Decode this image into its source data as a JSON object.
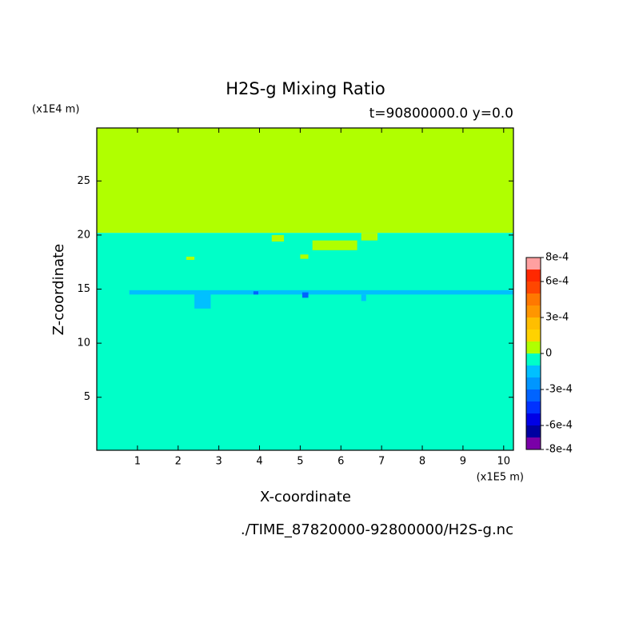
{
  "chart_data": {
    "type": "contour",
    "title": "H2S-g Mixing Ratio",
    "subtitle": "t=90800000.0 y=0.0",
    "x_label": "X-coordinate",
    "y_label": "Z-coordinate",
    "x_unit": "(x1E5 m)",
    "y_unit": "(x1E4 m)",
    "source": "./TIME_87820000-92800000/H2S-g.nc",
    "xlim": [
      0,
      10.24
    ],
    "ylim": [
      0.1,
      29.9
    ],
    "xticks": [
      1,
      2,
      3,
      4,
      5,
      6,
      7,
      8,
      9,
      10
    ],
    "yticks": [
      5,
      10,
      15,
      20,
      25
    ],
    "colorbar": {
      "levels": [
        -0.0008,
        -0.0007,
        -0.0006,
        -0.0005,
        -0.0004,
        -0.0003,
        -0.0002,
        -0.0001,
        0,
        0.0001,
        0.0002,
        0.0003,
        0.0004,
        0.0005,
        0.0006,
        0.0007,
        0.0008
      ],
      "colors": [
        "#7a00a8",
        "#0000a0",
        "#0000e6",
        "#0032ff",
        "#0064ff",
        "#0096ff",
        "#00c0ff",
        "#00ffc8",
        "#b0ff00",
        "#ffd200",
        "#ffbe00",
        "#ff9600",
        "#ff7800",
        "#ff4600",
        "#ff2800",
        "#ffa0a0"
      ],
      "ticks": [
        {
          "value": 0.0008,
          "label": "8e-4"
        },
        {
          "value": 0.0006,
          "label": "6e-4"
        },
        {
          "value": 0.0003,
          "label": "3e-4"
        },
        0,
        {
          "value": -0.0003,
          "label": "-3e-4"
        },
        {
          "value": -0.0006,
          "label": "-6e-4"
        },
        {
          "value": -0.0008,
          "label": "-8e-4"
        }
      ]
    },
    "patches": [
      {
        "x": [
          0,
          10.24
        ],
        "y": [
          20.2,
          29.9
        ],
        "value": 5e-05
      },
      {
        "x": [
          0,
          10.24
        ],
        "y": [
          0.1,
          20.2
        ],
        "value": -5e-05
      },
      {
        "x": [
          0.8,
          10.24
        ],
        "y": [
          14.5,
          14.9
        ],
        "value": -0.00015
      },
      {
        "x": [
          2.4,
          2.8
        ],
        "y": [
          13.2,
          14.8
        ],
        "value": -0.00015
      },
      {
        "x": [
          3.85,
          3.97
        ],
        "y": [
          14.5,
          14.8
        ],
        "value": -0.00035
      },
      {
        "x": [
          5.05,
          5.2
        ],
        "y": [
          14.2,
          14.7
        ],
        "value": -0.00035
      },
      {
        "x": [
          6.5,
          6.62
        ],
        "y": [
          13.9,
          14.5
        ],
        "value": -0.00015
      },
      {
        "x": [
          4.3,
          4.6
        ],
        "y": [
          19.4,
          20.0
        ],
        "value": 5e-05
      },
      {
        "x": [
          5.3,
          6.4
        ],
        "y": [
          18.6,
          19.5
        ],
        "value": 5e-05
      },
      {
        "x": [
          6.5,
          6.9
        ],
        "y": [
          19.5,
          20.2
        ],
        "value": 5e-05
      },
      {
        "x": [
          2.2,
          2.4
        ],
        "y": [
          17.7,
          18.0
        ],
        "value": 5e-05
      },
      {
        "x": [
          5.0,
          5.2
        ],
        "y": [
          17.8,
          18.2
        ],
        "value": 5e-05
      }
    ]
  }
}
